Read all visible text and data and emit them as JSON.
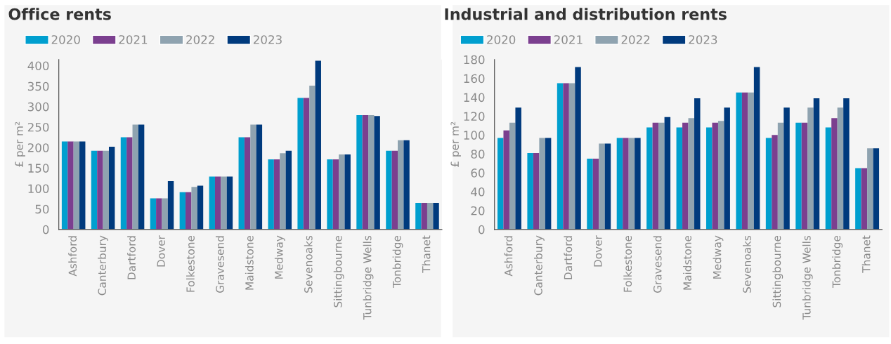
{
  "chart_data": [
    {
      "type": "bar",
      "title": "Office rents",
      "ylabel": "£ per m²",
      "categories": [
        "Ashford",
        "Canterbury",
        "Dartford",
        "Dover",
        "Folkestone",
        "Gravesend",
        "Maidstone",
        "Medway",
        "Sevenoaks",
        "Sittingbourne",
        "Tunbridge Wells",
        "Tonbridge",
        "Thanet"
      ],
      "series": [
        {
          "name": "2020",
          "color": "#009fcf",
          "values": [
            215,
            192,
            225,
            76,
            91,
            129,
            225,
            171,
            321,
            171,
            279,
            192,
            65
          ]
        },
        {
          "name": "2021",
          "color": "#7b3f8f",
          "values": [
            215,
            192,
            225,
            76,
            91,
            129,
            225,
            171,
            321,
            171,
            279,
            192,
            65
          ]
        },
        {
          "name": "2022",
          "color": "#8fa3b0",
          "values": [
            215,
            192,
            256,
            76,
            104,
            129,
            256,
            186,
            351,
            183,
            279,
            218,
            65
          ]
        },
        {
          "name": "2023",
          "color": "#003a7d",
          "values": [
            215,
            202,
            256,
            118,
            107,
            129,
            256,
            192,
            412,
            183,
            277,
            218,
            65
          ]
        }
      ],
      "ylim": [
        0,
        415
      ],
      "yticks": [
        0,
        50,
        100,
        150,
        200,
        250,
        300,
        350,
        400
      ],
      "grid": false,
      "legend": "top left"
    },
    {
      "type": "bar",
      "title": "Industrial and distribution rents",
      "ylabel": "£ per m²",
      "categories": [
        "Ashford",
        "Canterbury",
        "Dartford",
        "Dover",
        "Folkestone",
        "Gravesend",
        "Maidstone",
        "Medway",
        "Sevenoaks",
        "Sittingbourne",
        "Tunbridge Wells",
        "Tonbridge",
        "Thanet"
      ],
      "series": [
        {
          "name": "2020",
          "color": "#009fcf",
          "values": [
            97,
            81,
            155,
            75,
            97,
            108,
            108,
            108,
            145,
            97,
            113,
            108,
            65
          ]
        },
        {
          "name": "2021",
          "color": "#7b3f8f",
          "values": [
            105,
            81,
            155,
            75,
            97,
            113,
            113,
            113,
            145,
            100,
            113,
            118,
            65
          ]
        },
        {
          "name": "2022",
          "color": "#8fa3b0",
          "values": [
            113,
            97,
            155,
            91,
            97,
            113,
            118,
            115,
            145,
            113,
            129,
            129,
            86
          ]
        },
        {
          "name": "2023",
          "color": "#003a7d",
          "values": [
            129,
            97,
            172,
            91,
            97,
            119,
            139,
            129,
            172,
            129,
            139,
            139,
            86
          ]
        }
      ],
      "ylim": [
        0,
        180
      ],
      "yticks": [
        0,
        20,
        40,
        60,
        80,
        100,
        120,
        140,
        160,
        180
      ],
      "grid": false,
      "legend": "top left"
    }
  ]
}
